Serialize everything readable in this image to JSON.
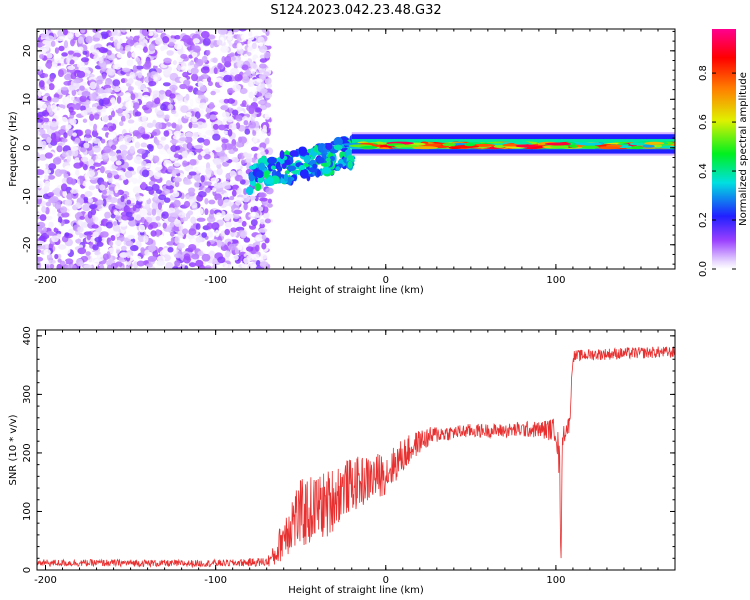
{
  "title": "S124.2023.042.23.48.G32",
  "colors": {
    "snr_line": "#e83030",
    "axis": "#000000",
    "background": "#ffffff"
  },
  "chart_data": [
    {
      "type": "heatmap",
      "xlabel": "Height of straight line (km)",
      "ylabel": "Frequency (Hz)",
      "xlim": [
        -205,
        170
      ],
      "ylim": [
        -25,
        24.5
      ],
      "x_ticks": [
        -200,
        -100,
        0,
        100
      ],
      "y_ticks": [
        -20,
        -10,
        0,
        10,
        20
      ],
      "grid": false,
      "colorbar": {
        "label": "Normalized spectral amplitude",
        "range": [
          0,
          0.98
        ],
        "ticks": [
          0.0,
          0.2,
          0.4,
          0.6,
          0.8
        ],
        "colormap": "rainbow (white-violet-blue-cyan-green-yellow-red-magenta)"
      },
      "regions": [
        {
          "name": "noise",
          "x_range": [
            -205,
            -68
          ],
          "freq_range": [
            -25,
            24.5
          ],
          "amplitude": [
            0.0,
            0.15
          ]
        },
        {
          "name": "transition",
          "x_range": [
            -80,
            -20
          ],
          "freq_center": [
            -6,
            -1
          ],
          "amplitude": [
            0.2,
            0.45
          ]
        },
        {
          "name": "carrier",
          "x_range": [
            -20,
            170
          ],
          "freq_center": [
            0,
            1
          ],
          "amplitude": [
            0.3,
            0.95
          ]
        }
      ]
    },
    {
      "type": "line",
      "xlabel": "Height of straight line (km)",
      "ylabel": "SNR (10 * v/v)",
      "xlim": [
        -205,
        170
      ],
      "ylim": [
        0,
        410
      ],
      "x_ticks": [
        -200,
        -100,
        0,
        100
      ],
      "y_ticks": [
        0,
        100,
        200,
        300,
        400
      ],
      "grid": false,
      "series": [
        {
          "x": [
            -205,
            -180,
            -150,
            -120,
            -90,
            -70,
            -65,
            -60,
            -55,
            -50,
            -45,
            -40,
            -35,
            -30,
            -25,
            -20,
            -15,
            -10,
            -5,
            0,
            10,
            20,
            30,
            40,
            50,
            60,
            70,
            80,
            90,
            95,
            100,
            102,
            103,
            104,
            106,
            108,
            110,
            120,
            140,
            160,
            170
          ],
          "y": [
            12,
            12,
            12,
            11,
            12,
            14,
            25,
            60,
            85,
            95,
            100,
            110,
            110,
            125,
            140,
            145,
            150,
            155,
            160,
            165,
            195,
            220,
            232,
            235,
            238,
            238,
            238,
            240,
            240,
            240,
            240,
            185,
            60,
            230,
            240,
            250,
            365,
            368,
            370,
            372,
            372
          ],
          "noise_amplitude": [
            6,
            6,
            6,
            6,
            6,
            8,
            20,
            40,
            55,
            60,
            60,
            55,
            60,
            55,
            50,
            45,
            45,
            40,
            40,
            35,
            30,
            20,
            15,
            12,
            12,
            12,
            12,
            14,
            14,
            18,
            20,
            40,
            60,
            20,
            15,
            15,
            10,
            10,
            10,
            10,
            10
          ]
        }
      ]
    }
  ]
}
